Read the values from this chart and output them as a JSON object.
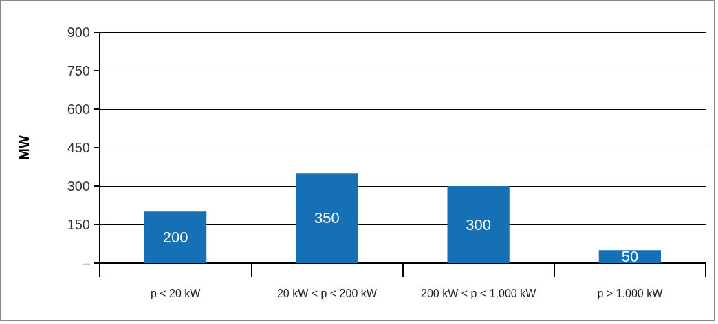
{
  "chart_data": {
    "type": "bar",
    "ylabel": "MW",
    "categories": [
      "p < 20 kW",
      "20 kW < p < 200 kW",
      "200 kW < p < 1.000 kW",
      "p > 1.000 kW"
    ],
    "values": [
      200,
      350,
      300,
      50
    ],
    "color": "#1670b6",
    "ylim": [
      0,
      900
    ],
    "yticks": [
      {
        "value": 0,
        "label": "–"
      },
      150,
      300,
      450,
      600,
      750,
      900
    ],
    "grid": "y",
    "data_labels": true
  }
}
